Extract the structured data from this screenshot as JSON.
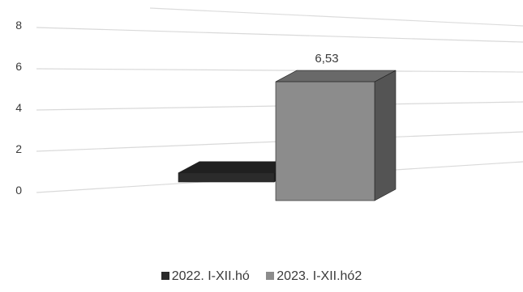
{
  "chart_data": {
    "type": "bar",
    "categories": [
      ""
    ],
    "series": [
      {
        "name": "2022. I-XII.hó",
        "values": [
          0.5
        ],
        "color": "#2b2b2b"
      },
      {
        "name": "2023. I-XII.hó2",
        "values": [
          6.53
        ],
        "color": "#8c8c8c"
      }
    ],
    "data_labels": [
      "",
      "6,53"
    ],
    "yticks": [
      "0",
      "2",
      "4",
      "6",
      "8"
    ],
    "ylim": [
      0,
      8
    ],
    "grid": true,
    "legend": "bottom",
    "title": "",
    "xlabel": "",
    "ylabel": ""
  }
}
